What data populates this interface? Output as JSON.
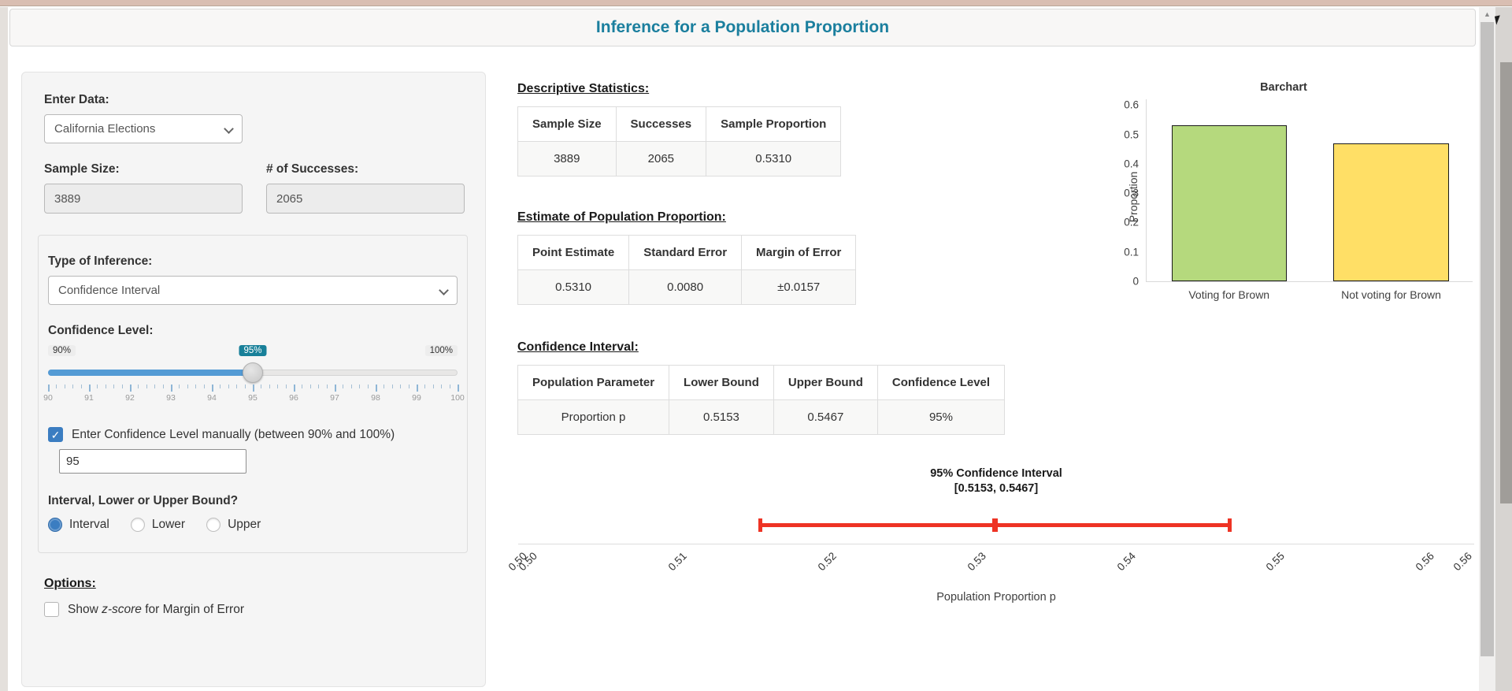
{
  "icons": {
    "up_arrow": "▲",
    "check": "✓"
  },
  "colors": {
    "title_teal": "#1b7f9e",
    "slider_badge_teal": "#188099",
    "slider_fill_blue": "#549bd5",
    "checkbox_blue": "#3b7dc1",
    "bar_green": "#b5d97d",
    "bar_yellow": "#ffdf66",
    "interval_red": "#ee3324"
  },
  "header": {
    "title": "Inference for a Population Proportion"
  },
  "sidebar": {
    "enter_data": {
      "label": "Enter Data:",
      "selected": "California Elections"
    },
    "sample_size": {
      "label": "Sample Size:",
      "value": "3889"
    },
    "successes": {
      "label": "# of Successes:",
      "value": "2065"
    },
    "inference": {
      "type_label": "Type of Inference:",
      "type_selected": "Confidence Interval",
      "confidence_label": "Confidence Level:",
      "slider": {
        "label_min": "90%",
        "label_max": "100%",
        "label_value": "95%",
        "min": 90,
        "max": 100,
        "value": 95,
        "value_pct": 50,
        "grid": [
          "90",
          "91",
          "92",
          "93",
          "94",
          "95",
          "96",
          "97",
          "98",
          "99",
          "100"
        ]
      },
      "manual_checkbox_label": "Enter Confidence Level manually (between 90% and 100%)",
      "manual_checked": true,
      "manual_value": "95",
      "bound_question": "Interval, Lower or Upper Bound?",
      "bound_options": [
        {
          "label": "Interval",
          "selected": true
        },
        {
          "label": "Lower",
          "selected": false
        },
        {
          "label": "Upper",
          "selected": false
        }
      ]
    },
    "options": {
      "heading": "Options:",
      "zscore_checked": false,
      "zscore_pre": "Show ",
      "zscore_italic": "z-score",
      "zscore_post": " for Margin of Error"
    }
  },
  "main": {
    "descriptive": {
      "heading": "Descriptive Statistics:",
      "columns": [
        "Sample Size",
        "Successes",
        "Sample Proportion"
      ],
      "rows": [
        [
          "3889",
          "2065",
          "0.5310"
        ]
      ]
    },
    "estimate": {
      "heading": "Estimate of Population Proportion:",
      "columns": [
        "Point Estimate",
        "Standard Error",
        "Margin of Error"
      ],
      "rows": [
        [
          "0.5310",
          "0.0080",
          "±0.0157"
        ]
      ]
    },
    "ci": {
      "heading": "Confidence Interval:",
      "columns": [
        "Population Parameter",
        "Lower Bound",
        "Upper Bound",
        "Confidence Level"
      ],
      "rows": [
        [
          "Proportion p",
          "0.5153",
          "0.5467",
          "95%"
        ]
      ]
    }
  },
  "chart_data": [
    {
      "type": "bar",
      "title": "Barchart",
      "ylabel": "Proportion",
      "xlabel": "",
      "categories": [
        "Voting for Brown",
        "Not voting for Brown"
      ],
      "values": [
        0.531,
        0.469
      ],
      "bar_colors": [
        "#b5d97d",
        "#ffdf66"
      ],
      "ylim": [
        0,
        0.6
      ],
      "plot_max": 0.62,
      "yticks": [
        0,
        0.1,
        0.2,
        0.3,
        0.4,
        0.5,
        0.6
      ],
      "grid": "off",
      "bar_layout": [
        {
          "left_pct": 7.7,
          "width_pct": 35.2
        },
        {
          "left_pct": 57.3,
          "width_pct": 35.4
        }
      ]
    },
    {
      "type": "interval",
      "title_line1": "95% Confidence Interval",
      "title_line2": "[0.5153, 0.5467]",
      "xlabel": "Population Proportion p",
      "interval": {
        "lower": 0.5153,
        "upper": 0.5467,
        "center": 0.531
      },
      "confidence_level": "95%",
      "axis_range": [
        0.4987,
        0.5635
      ],
      "ticks": [
        {
          "v": 0.4993,
          "label": "0.50"
        },
        {
          "v": 0.5,
          "label": "0.50"
        },
        {
          "v": 0.51,
          "label": "0.51"
        },
        {
          "v": 0.52,
          "label": "0.52"
        },
        {
          "v": 0.53,
          "label": "0.53"
        },
        {
          "v": 0.54,
          "label": "0.54"
        },
        {
          "v": 0.55,
          "label": "0.55"
        },
        {
          "v": 0.56,
          "label": "0.56"
        },
        {
          "v": 0.5625,
          "label": "0.56"
        }
      ]
    }
  ]
}
